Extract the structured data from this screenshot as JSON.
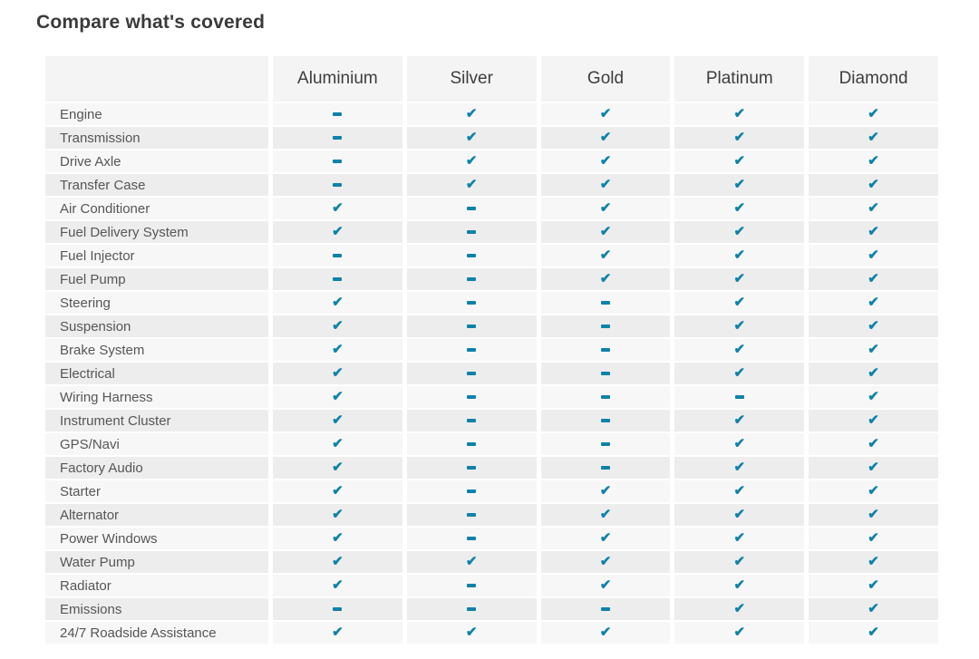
{
  "page": {
    "title": "Compare what's covered"
  },
  "colors": {
    "accent": "#0e82a8",
    "row_light": "#f7f7f7",
    "row_dark": "#ededed",
    "header_bg": "#f4f4f4"
  },
  "icons": {
    "check": "✔",
    "dash": "-"
  },
  "table": {
    "columns": [
      "Aluminium",
      "Silver",
      "Gold",
      "Platinum",
      "Diamond"
    ],
    "rows": [
      {
        "label": "Engine",
        "values": [
          "dash",
          "check",
          "check",
          "check",
          "check"
        ]
      },
      {
        "label": "Transmission",
        "values": [
          "dash",
          "check",
          "check",
          "check",
          "check"
        ]
      },
      {
        "label": "Drive Axle",
        "values": [
          "dash",
          "check",
          "check",
          "check",
          "check"
        ]
      },
      {
        "label": "Transfer Case",
        "values": [
          "dash",
          "check",
          "check",
          "check",
          "check"
        ]
      },
      {
        "label": "Air Conditioner",
        "values": [
          "check",
          "dash",
          "check",
          "check",
          "check"
        ]
      },
      {
        "label": "Fuel Delivery System",
        "values": [
          "check",
          "dash",
          "check",
          "check",
          "check"
        ]
      },
      {
        "label": "Fuel Injector",
        "values": [
          "dash",
          "dash",
          "check",
          "check",
          "check"
        ]
      },
      {
        "label": "Fuel Pump",
        "values": [
          "dash",
          "dash",
          "check",
          "check",
          "check"
        ]
      },
      {
        "label": "Steering",
        "values": [
          "check",
          "dash",
          "dash",
          "check",
          "check"
        ]
      },
      {
        "label": "Suspension",
        "values": [
          "check",
          "dash",
          "dash",
          "check",
          "check"
        ]
      },
      {
        "label": "Brake System",
        "values": [
          "check",
          "dash",
          "dash",
          "check",
          "check"
        ]
      },
      {
        "label": "Electrical",
        "values": [
          "check",
          "dash",
          "dash",
          "check",
          "check"
        ]
      },
      {
        "label": "Wiring Harness",
        "values": [
          "check",
          "dash",
          "dash",
          "dash",
          "check"
        ]
      },
      {
        "label": "Instrument Cluster",
        "values": [
          "check",
          "dash",
          "dash",
          "check",
          "check"
        ]
      },
      {
        "label": "GPS/Navi",
        "values": [
          "check",
          "dash",
          "dash",
          "check",
          "check"
        ]
      },
      {
        "label": "Factory Audio",
        "values": [
          "check",
          "dash",
          "dash",
          "check",
          "check"
        ]
      },
      {
        "label": "Starter",
        "values": [
          "check",
          "dash",
          "check",
          "check",
          "check"
        ]
      },
      {
        "label": "Alternator",
        "values": [
          "check",
          "dash",
          "check",
          "check",
          "check"
        ]
      },
      {
        "label": "Power Windows",
        "values": [
          "check",
          "dash",
          "check",
          "check",
          "check"
        ]
      },
      {
        "label": "Water Pump",
        "values": [
          "check",
          "check",
          "check",
          "check",
          "check"
        ]
      },
      {
        "label": "Radiator",
        "values": [
          "check",
          "dash",
          "check",
          "check",
          "check"
        ]
      },
      {
        "label": "Emissions",
        "values": [
          "dash",
          "dash",
          "dash",
          "check",
          "check"
        ]
      },
      {
        "label": "24/7 Roadside Assistance",
        "values": [
          "check",
          "check",
          "check",
          "check",
          "check"
        ]
      }
    ]
  }
}
